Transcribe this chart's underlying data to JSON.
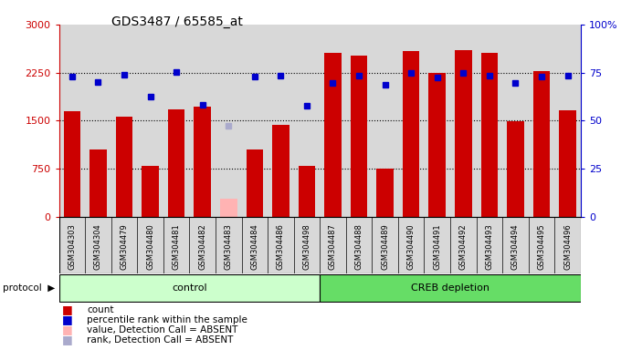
{
  "title": "GDS3487 / 65585_at",
  "samples": [
    "GSM304303",
    "GSM304304",
    "GSM304479",
    "GSM304480",
    "GSM304481",
    "GSM304482",
    "GSM304483",
    "GSM304484",
    "GSM304486",
    "GSM304498",
    "GSM304487",
    "GSM304488",
    "GSM304489",
    "GSM304490",
    "GSM304491",
    "GSM304492",
    "GSM304493",
    "GSM304494",
    "GSM304495",
    "GSM304496"
  ],
  "counts": [
    1650,
    1050,
    1560,
    790,
    1680,
    1720,
    280,
    1050,
    1430,
    790,
    2560,
    2520,
    750,
    2580,
    2250,
    2600,
    2560,
    1490,
    2280,
    1670
  ],
  "absent_value_idx": 6,
  "absent_value": 280,
  "ranks_left": [
    2190,
    2100,
    2210,
    1870,
    2260,
    1750,
    null,
    2190,
    2200,
    1740,
    2090,
    2200,
    2060,
    2245,
    2180,
    2250,
    2200,
    2095,
    2190,
    2200
  ],
  "absent_rank_idx": 6,
  "absent_rank_val": 1420,
  "group_control_count": 10,
  "group_creb_count": 10,
  "group_control_label": "control",
  "group_creb_label": "CREB depletion",
  "ylim_left": [
    0,
    3000
  ],
  "ylim_right": [
    0,
    100
  ],
  "yticks_left": [
    0,
    750,
    1500,
    2250,
    3000
  ],
  "yticks_right": [
    0,
    25,
    50,
    75,
    100
  ],
  "hlines": [
    750,
    1500,
    2250
  ],
  "bar_color": "#cc0000",
  "absent_bar_color": "#ffb3b3",
  "rank_color": "#0000cc",
  "absent_rank_color": "#aaaacc",
  "col_bg_color": "#d8d8d8",
  "control_group_color": "#ccffcc",
  "creb_group_color": "#66dd66",
  "bg_color": "#ffffff",
  "tick_color_left": "#cc0000",
  "tick_color_right": "#0000cc"
}
